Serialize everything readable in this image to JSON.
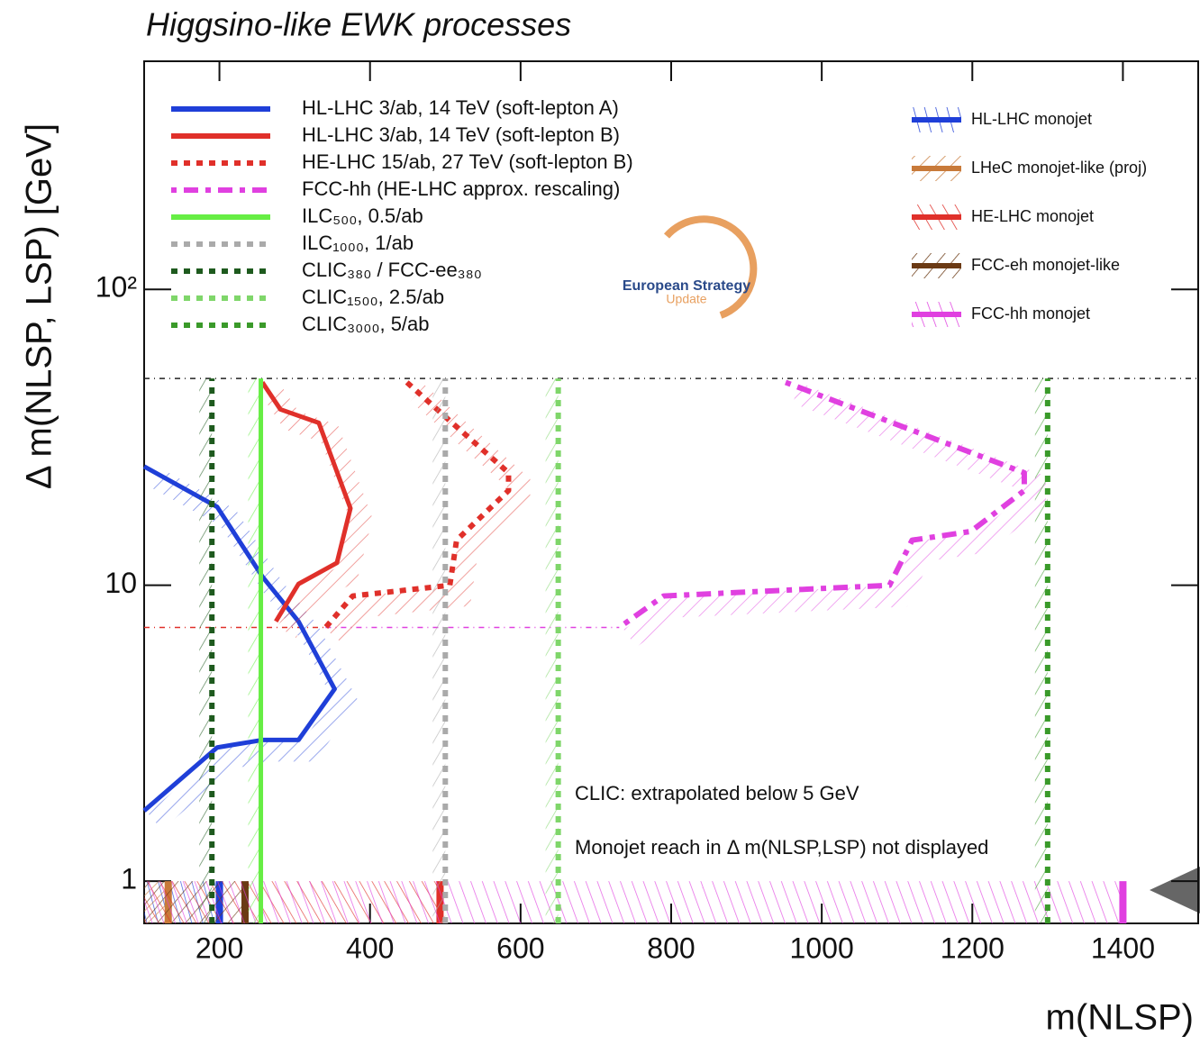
{
  "chart_data": {
    "type": "line",
    "title": "Higgsino-like EWK processes",
    "x_label": "m(NLSP)",
    "y_label": "Δ m(NLSP, LSP) [GeV]",
    "xlim": [
      100,
      1500
    ],
    "ylim": [
      0.72,
      590
    ],
    "log_y": true,
    "xticks": [
      200,
      400,
      600,
      800,
      1000,
      1200,
      1400
    ],
    "yticks": [
      1,
      10,
      {
        "value": 100,
        "label": "10²"
      }
    ],
    "series": [
      {
        "name": "HL-LHC 3/ab, 14 TeV (soft-lepton A)",
        "color": "#1f3fd8",
        "style": "solid",
        "x": [
          100,
          197,
          257,
          305,
          353,
          305,
          257,
          197,
          100
        ],
        "values": [
          25.2,
          18.4,
          10.7,
          7.55,
          4.46,
          3.0,
          3.0,
          2.83,
          1.73
        ]
      },
      {
        "name": "HL-LHC 3/ab, 14 TeV (soft-lepton B)",
        "color": "#e0302a",
        "style": "solid",
        "x": [
          257,
          281,
          332,
          374,
          356,
          305,
          275
        ],
        "values": [
          48.5,
          39.3,
          35.4,
          18.2,
          11.9,
          10.1,
          7.55
        ]
      },
      {
        "name": "HE-LHC 15/ab, 27 TeV (soft-lepton B)",
        "color": "#e0302a",
        "style": "dotted",
        "x": [
          449,
          509,
          584,
          584,
          515,
          506,
          377,
          341
        ],
        "values": [
          48.5,
          35.4,
          24,
          20.9,
          14.2,
          10,
          9.2,
          7.2
        ]
      },
      {
        "name": "FCC-hh (HE-LHC approx. rescaling)",
        "color": "#e040e0",
        "style": "dashdot",
        "x": [
          952,
          1269,
          1269,
          1198,
          1120,
          1090,
          790,
          731
        ],
        "values": [
          48.5,
          24,
          20.9,
          15.2,
          14.2,
          10,
          9.2,
          7.2
        ]
      },
      {
        "name": "ILC₅₀₀, 0.5/ab",
        "color": "#66ee44",
        "style": "solid",
        "x": [
          255,
          255
        ],
        "values": [
          0.72,
          50
        ]
      },
      {
        "name": "ILC₁₀₀₀, 1/ab",
        "color": "#aaaaaa",
        "style": "dotted",
        "x": [
          500,
          500
        ],
        "values": [
          0.72,
          50
        ]
      },
      {
        "name": "CLIC₃₈₀ / FCC-ee₃₈₀",
        "color": "#1e5a1e",
        "style": "dotted",
        "x": [
          190,
          190
        ],
        "values": [
          0.72,
          50
        ]
      },
      {
        "name": "CLIC₁₅₀₀, 2.5/ab",
        "color": "#7fd66a",
        "style": "dotted",
        "x": [
          650,
          650
        ],
        "values": [
          0.72,
          50
        ]
      },
      {
        "name": "CLIC₃₀₀₀, 5/ab",
        "color": "#3a9a2a",
        "style": "dotted",
        "x": [
          1300,
          1300
        ],
        "values": [
          0.72,
          50
        ]
      }
    ],
    "reference_lines": [
      {
        "color": "#222222",
        "x": [
          100,
          1500
        ],
        "values": [
          50,
          50
        ]
      },
      {
        "color": "#e0302a",
        "x": [
          100,
          341
        ],
        "values": [
          7.2,
          7.2
        ]
      },
      {
        "color": "#e040e0",
        "x": [
          341,
          731
        ],
        "values": [
          7.2,
          7.2
        ]
      }
    ],
    "monojet": {
      "y_range": [
        0.72,
        1
      ],
      "series": [
        {
          "name": "HL-LHC monojet",
          "color": "#1f3fd8",
          "reach": 200
        },
        {
          "name": "LHeC monojet-like (proj)",
          "color": "#c87a3a",
          "reach": 132
        },
        {
          "name": "HE-LHC monojet",
          "color": "#e0302a",
          "reach": 493
        },
        {
          "name": "FCC-eh monojet-like",
          "color": "#6b3a14",
          "reach": 234
        },
        {
          "name": "FCC-hh monojet",
          "color": "#e040e0",
          "reach": 1400
        }
      ]
    },
    "annotations": [
      "CLIC: extrapolated below 5 GeV",
      "Monojet reach in Δ m(NLSP,LSP) not displayed"
    ],
    "logo": [
      "European Strategy",
      "Update"
    ]
  }
}
